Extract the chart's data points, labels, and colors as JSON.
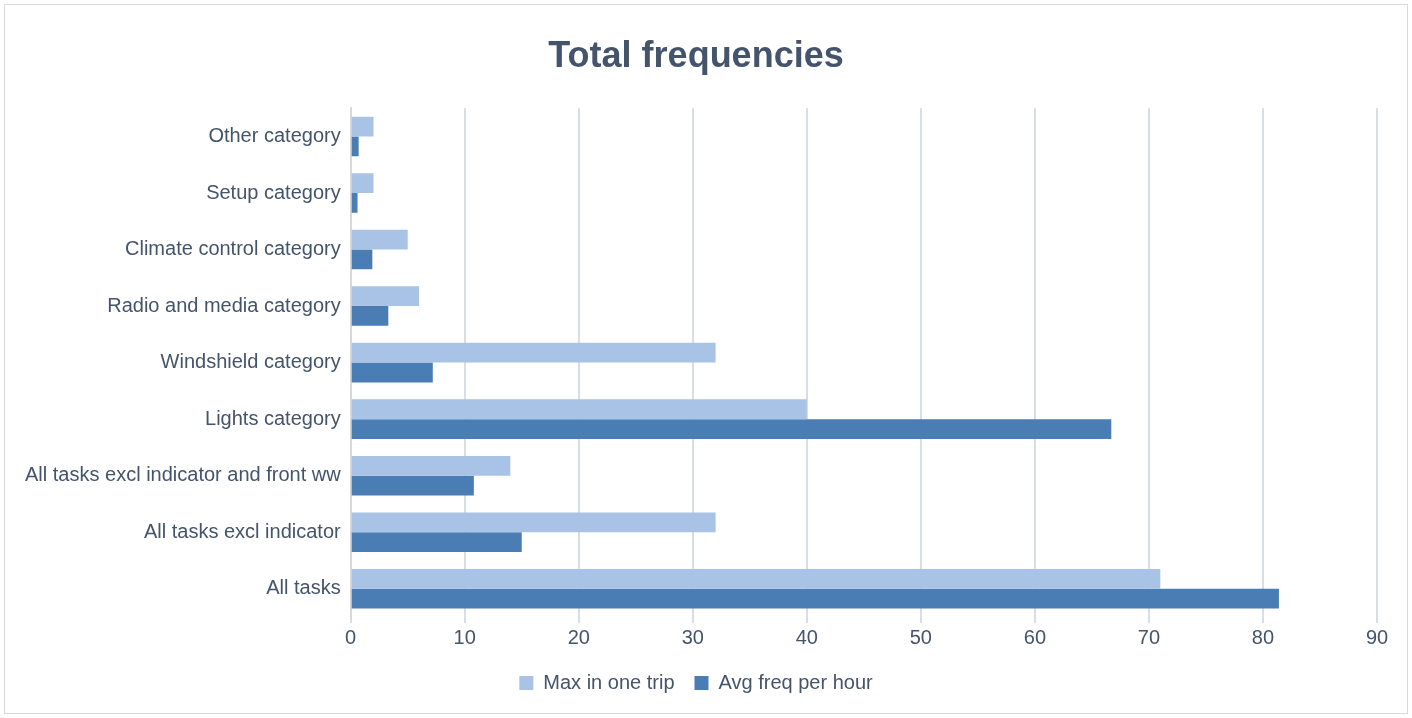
{
  "chart_data": {
    "type": "bar",
    "orientation": "horizontal",
    "title": "Total frequencies",
    "categories": [
      "Other category",
      "Setup category",
      "Climate control category",
      "Radio and media category",
      "Windshield category",
      "Lights category",
      "All tasks excl indicator and front ww",
      "All tasks excl indicator",
      "All tasks"
    ],
    "series": [
      {
        "name": "Max in one trip",
        "color": "#a9c3e6",
        "values": [
          2,
          2,
          5,
          6,
          32,
          40,
          14,
          32,
          71
        ]
      },
      {
        "name": "Avg freq per hour",
        "color": "#4a7db3",
        "values": [
          0.7,
          0.6,
          1.9,
          3.3,
          7.2,
          66.7,
          10.8,
          15,
          81.4
        ]
      }
    ],
    "xlim": [
      0,
      90
    ],
    "xticks": [
      0,
      10,
      20,
      30,
      40,
      50,
      60,
      70,
      80,
      90
    ],
    "grid": "x",
    "legend": "bottom"
  }
}
